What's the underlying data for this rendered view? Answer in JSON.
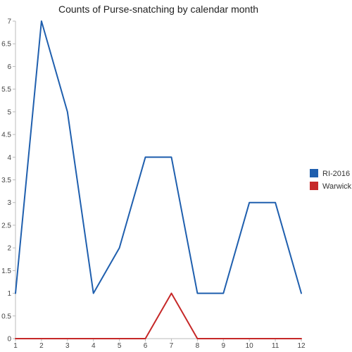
{
  "chart_data": {
    "type": "line",
    "title": "Counts of Purse-snatching by calendar month",
    "xlabel": "",
    "ylabel": "",
    "x": [
      1,
      2,
      3,
      4,
      5,
      6,
      7,
      8,
      9,
      10,
      11,
      12
    ],
    "x_tick_labels": [
      "1",
      "2",
      "3",
      "4",
      "5",
      "6",
      "7",
      "8",
      "9",
      "10",
      "11",
      "12"
    ],
    "y_tick_labels": [
      "0",
      "0.5",
      "1",
      "1.5",
      "2",
      "2.5",
      "3",
      "3.5",
      "4",
      "4.5",
      "5",
      "5.5",
      "6",
      "6.5",
      "7"
    ],
    "ylim": [
      0,
      7
    ],
    "grid": false,
    "legend_position": "right",
    "series": [
      {
        "name": "RI-2016",
        "color": "#1f5fae",
        "values": [
          1,
          7,
          5,
          1,
          2,
          4,
          4,
          1,
          1,
          3,
          3,
          1
        ]
      },
      {
        "name": "Warwick",
        "color": "#c62828",
        "values": [
          0,
          0,
          0,
          0,
          0,
          0,
          1,
          0,
          0,
          0,
          0,
          0
        ]
      }
    ]
  }
}
